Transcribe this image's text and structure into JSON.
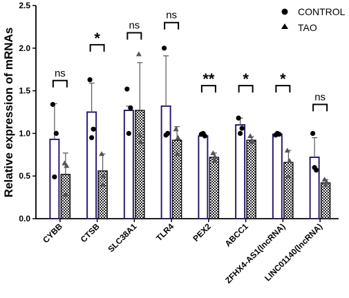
{
  "chart_data": {
    "type": "bar",
    "title": "",
    "xlabel": "",
    "ylabel": "Relative expression of mRNAs",
    "ylim": [
      0,
      2.5
    ],
    "yticks": [
      "0.0",
      "0.5",
      "1.0",
      "1.5",
      "2.0",
      "2.5"
    ],
    "grid": false,
    "legend_position": "top-right",
    "categories": [
      "CYBB",
      "CTSB",
      "SLC38A1",
      "TLR4",
      "PEX2",
      "ABCC1",
      "ZFHX4-AS1(lncRNA)",
      "LINC01140(lncRNA)"
    ],
    "series": [
      {
        "name": "CONTROL",
        "marker": "circle",
        "fill": "white",
        "color": "#2e1a6e",
        "values": [
          0.93,
          1.25,
          1.27,
          1.32,
          0.97,
          1.1,
          0.99,
          0.72
        ],
        "error_up": [
          0.42,
          0.34,
          0.05,
          0.59,
          0.04,
          0.08,
          0.02,
          0.23
        ],
        "error_down": [
          0.42,
          0.34,
          0.05,
          0.59,
          0.04,
          0.08,
          0.02,
          0.23
        ],
        "points": [
          [
            1.34,
            1.0,
            0.49
          ],
          [
            1.63,
            1.05,
            0.95
          ],
          [
            1.52,
            1.3,
            1.0
          ],
          [
            2.0,
            1.0,
            0.98
          ],
          [
            0.99,
            0.97,
            1.0
          ],
          [
            1.18,
            1.06,
            1.0
          ],
          [
            0.98,
            0.99,
            1.0
          ],
          [
            1.0,
            0.57,
            0.6
          ]
        ]
      },
      {
        "name": "TAO",
        "marker": "triangle",
        "fill": "checker",
        "color": "#333333",
        "values": [
          0.52,
          0.56,
          1.27,
          0.92,
          0.72,
          0.92,
          0.66,
          0.42
        ],
        "error_up": [
          0.25,
          0.2,
          0.56,
          0.16,
          0.05,
          0.04,
          0.14,
          0.04
        ],
        "error_down": [
          0.25,
          0.2,
          0.56,
          0.16,
          0.05,
          0.04,
          0.14,
          0.04
        ],
        "points": [
          [
            0.65,
            0.62,
            0.28
          ],
          [
            0.76,
            0.5,
            0.4
          ],
          [
            1.93,
            0.9,
            0.98
          ],
          [
            1.05,
            0.95,
            0.76
          ],
          [
            0.77,
            0.72,
            0.68
          ],
          [
            0.97,
            0.91,
            0.9
          ],
          [
            0.8,
            0.68,
            0.5
          ],
          [
            0.46,
            0.43,
            0.4
          ]
        ]
      }
    ],
    "significance": [
      "ns",
      "*",
      "ns",
      "ns",
      "**",
      "*",
      "*",
      "ns"
    ],
    "significance_bracket_y": [
      1.62,
      2.04,
      2.18,
      2.3,
      1.56,
      1.56,
      1.56,
      1.34
    ]
  }
}
